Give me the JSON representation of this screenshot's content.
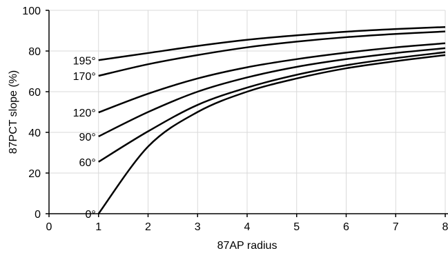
{
  "chart_data": {
    "type": "line",
    "xlabel": "87AP radius",
    "ylabel": "87PCT slope (%)",
    "xlim": [
      0,
      8
    ],
    "ylim": [
      0,
      100
    ],
    "xticks": [
      0,
      1,
      2,
      3,
      4,
      5,
      6,
      7,
      8
    ],
    "yticks": [
      0,
      20,
      40,
      60,
      80,
      100
    ],
    "xtick_labels": [
      "0",
      "1",
      "2",
      "3",
      "4",
      "5",
      "6",
      "7",
      "8"
    ],
    "ytick_labels": [
      "0",
      "20",
      "40",
      "60",
      "80",
      "100"
    ],
    "grid": true,
    "series": [
      {
        "name": "195°",
        "x": [
          1,
          2,
          3,
          4,
          5,
          6,
          7,
          8
        ],
        "values": [
          75.5,
          79.0,
          82.5,
          85.5,
          87.7,
          89.5,
          90.8,
          91.8
        ]
      },
      {
        "name": "170°",
        "x": [
          1,
          2,
          3,
          4,
          5,
          6,
          7,
          8
        ],
        "values": [
          67.8,
          73.5,
          78.0,
          81.8,
          84.6,
          86.8,
          88.4,
          89.6
        ]
      },
      {
        "name": "120°",
        "x": [
          1,
          2,
          3,
          4,
          5,
          6,
          7,
          8
        ],
        "values": [
          49.8,
          59.0,
          66.5,
          72.0,
          76.0,
          79.2,
          81.8,
          83.8
        ]
      },
      {
        "name": "90°",
        "x": [
          1,
          2,
          3,
          4,
          5,
          6,
          7,
          8
        ],
        "values": [
          38.0,
          50.0,
          60.0,
          67.0,
          72.2,
          76.0,
          79.0,
          81.4
        ]
      },
      {
        "name": "60°",
        "x": [
          1,
          2,
          3,
          4,
          5,
          6,
          7,
          8
        ],
        "values": [
          25.5,
          40.5,
          53.5,
          62.0,
          68.3,
          73.0,
          76.5,
          79.4
        ]
      },
      {
        "name": "0°",
        "x": [
          1,
          2,
          3,
          4,
          5,
          6,
          7,
          8
        ],
        "values": [
          0,
          33.0,
          50.0,
          60.0,
          66.5,
          71.5,
          75.0,
          78.0
        ]
      }
    ]
  }
}
